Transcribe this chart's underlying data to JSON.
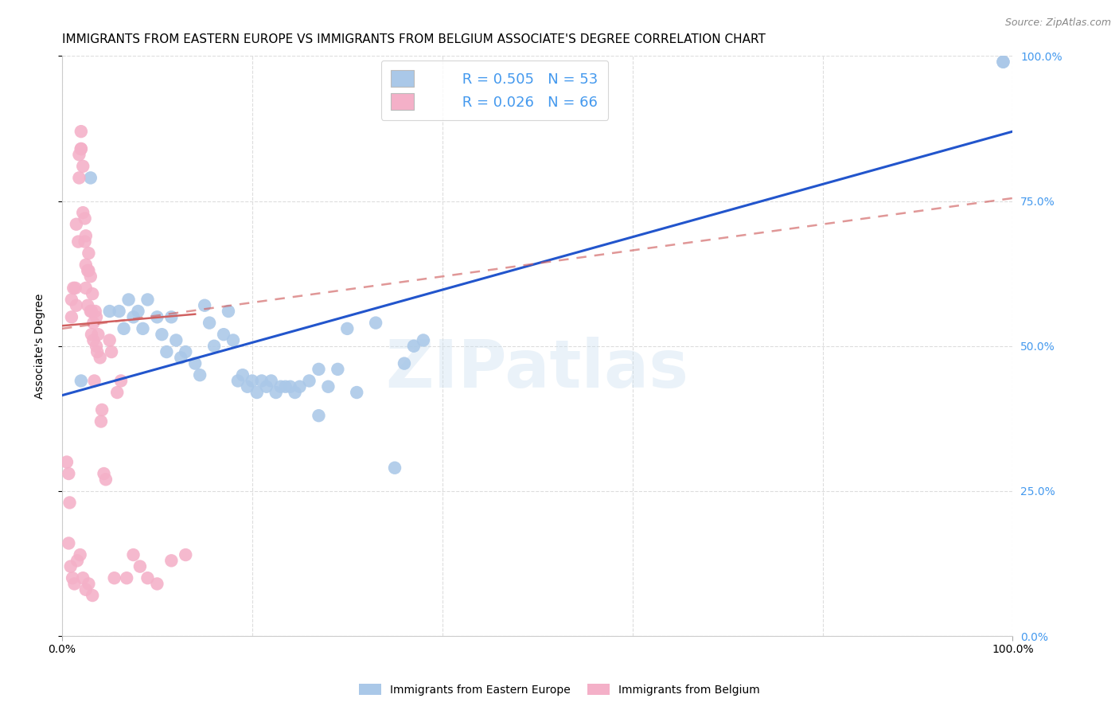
{
  "title": "IMMIGRANTS FROM EASTERN EUROPE VS IMMIGRANTS FROM BELGIUM ASSOCIATE'S DEGREE CORRELATION CHART",
  "source_text": "Source: ZipAtlas.com",
  "ylabel": "Associate's Degree",
  "xlim": [
    0.0,
    1.0
  ],
  "ylim": [
    0.0,
    1.0
  ],
  "xtick_positions": [
    0.0,
    1.0
  ],
  "xtick_labels": [
    "0.0%",
    "100.0%"
  ],
  "ytick_values": [
    0.0,
    0.25,
    0.5,
    0.75,
    1.0
  ],
  "ytick_right_labels": [
    "0.0%",
    "25.0%",
    "50.0%",
    "75.0%",
    "100.0%"
  ],
  "watermark_text": "ZIPatlas",
  "legend_r1": "R = 0.505",
  "legend_n1": "N = 53",
  "legend_r2": "R = 0.026",
  "legend_n2": "N = 66",
  "series1_label": "Immigrants from Eastern Europe",
  "series2_label": "Immigrants from Belgium",
  "series1_color": "#aac8e8",
  "series2_color": "#f4b0c8",
  "series1_line_color": "#2255cc",
  "series2_line_color": "#d06060",
  "legend_text_color": "#4499ee",
  "grid_color": "#dddddd",
  "title_fontsize": 11,
  "right_tick_color": "#4499ee",
  "blue_dots_x": [
    0.02,
    0.03,
    0.05,
    0.06,
    0.065,
    0.07,
    0.075,
    0.08,
    0.085,
    0.09,
    0.1,
    0.105,
    0.11,
    0.115,
    0.12,
    0.125,
    0.13,
    0.14,
    0.145,
    0.15,
    0.155,
    0.16,
    0.17,
    0.175,
    0.18,
    0.185,
    0.19,
    0.195,
    0.2,
    0.205,
    0.21,
    0.215,
    0.22,
    0.225,
    0.23,
    0.235,
    0.24,
    0.245,
    0.25,
    0.26,
    0.27,
    0.3,
    0.31,
    0.27,
    0.99,
    0.99,
    0.35,
    0.28,
    0.29,
    0.36,
    0.33,
    0.37,
    0.38
  ],
  "blue_dots_y": [
    0.44,
    0.79,
    0.56,
    0.56,
    0.53,
    0.58,
    0.55,
    0.56,
    0.53,
    0.58,
    0.55,
    0.52,
    0.49,
    0.55,
    0.51,
    0.48,
    0.49,
    0.47,
    0.45,
    0.57,
    0.54,
    0.5,
    0.52,
    0.56,
    0.51,
    0.44,
    0.45,
    0.43,
    0.44,
    0.42,
    0.44,
    0.43,
    0.44,
    0.42,
    0.43,
    0.43,
    0.43,
    0.42,
    0.43,
    0.44,
    0.46,
    0.53,
    0.42,
    0.38,
    0.99,
    0.99,
    0.29,
    0.43,
    0.46,
    0.47,
    0.54,
    0.5,
    0.51
  ],
  "pink_dots_x": [
    0.005,
    0.007,
    0.008,
    0.01,
    0.01,
    0.012,
    0.014,
    0.015,
    0.015,
    0.017,
    0.018,
    0.018,
    0.02,
    0.02,
    0.02,
    0.022,
    0.022,
    0.024,
    0.024,
    0.025,
    0.025,
    0.025,
    0.027,
    0.027,
    0.028,
    0.028,
    0.03,
    0.03,
    0.031,
    0.031,
    0.032,
    0.033,
    0.033,
    0.034,
    0.035,
    0.036,
    0.036,
    0.037,
    0.038,
    0.04,
    0.041,
    0.042,
    0.044,
    0.046,
    0.05,
    0.052,
    0.055,
    0.058,
    0.062,
    0.068,
    0.075,
    0.082,
    0.09,
    0.1,
    0.115,
    0.13,
    0.007,
    0.009,
    0.011,
    0.013,
    0.016,
    0.019,
    0.022,
    0.025,
    0.028,
    0.032
  ],
  "pink_dots_y": [
    0.3,
    0.28,
    0.23,
    0.58,
    0.55,
    0.6,
    0.6,
    0.57,
    0.71,
    0.68,
    0.83,
    0.79,
    0.84,
    0.87,
    0.84,
    0.81,
    0.73,
    0.72,
    0.68,
    0.64,
    0.69,
    0.6,
    0.63,
    0.57,
    0.66,
    0.63,
    0.62,
    0.56,
    0.56,
    0.52,
    0.59,
    0.54,
    0.51,
    0.44,
    0.56,
    0.5,
    0.55,
    0.49,
    0.52,
    0.48,
    0.37,
    0.39,
    0.28,
    0.27,
    0.51,
    0.49,
    0.1,
    0.42,
    0.44,
    0.1,
    0.14,
    0.12,
    0.1,
    0.09,
    0.13,
    0.14,
    0.16,
    0.12,
    0.1,
    0.09,
    0.13,
    0.14,
    0.1,
    0.08,
    0.09,
    0.07
  ],
  "blue_line": [
    0.0,
    1.0,
    0.415,
    0.87
  ],
  "pink_solid_line": [
    0.0,
    0.14,
    0.535,
    0.555
  ],
  "pink_dashed_line": [
    0.0,
    1.0,
    0.53,
    0.755
  ]
}
